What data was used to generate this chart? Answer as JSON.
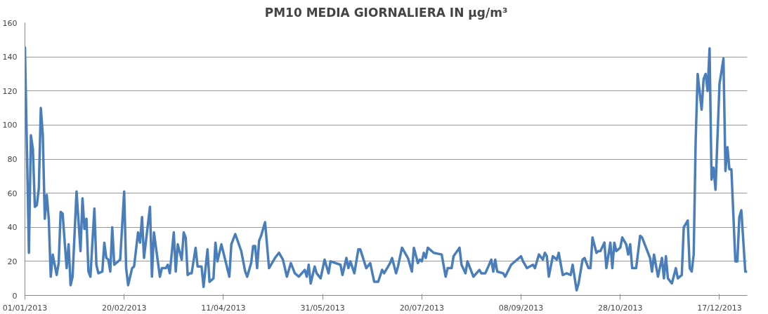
{
  "chart_data": {
    "type": "line",
    "title": "PM10 MEDIA GIORNALIERA IN µg/m³",
    "x": [
      "2013-01-01",
      "2013-01-03",
      "2013-01-04",
      "2013-01-05",
      "2013-01-06",
      "2013-01-07",
      "2013-01-08",
      "2013-01-09",
      "2013-01-10",
      "2013-01-11",
      "2013-01-12",
      "2013-01-13",
      "2013-01-14",
      "2013-01-15",
      "2013-01-17",
      "2013-01-18",
      "2013-01-19",
      "2013-01-20",
      "2013-01-22",
      "2013-01-23",
      "2013-01-24",
      "2013-01-25",
      "2013-01-27",
      "2013-01-29",
      "2013-01-30",
      "2013-01-31",
      "2013-02-01",
      "2013-02-02",
      "2013-02-03",
      "2013-02-05",
      "2013-02-06",
      "2013-02-07",
      "2013-02-09",
      "2013-02-10",
      "2013-02-11",
      "2013-02-12",
      "2013-02-13",
      "2013-02-14",
      "2013-02-15",
      "2013-02-18",
      "2013-02-20",
      "2013-02-21",
      "2013-02-22",
      "2013-02-24",
      "2013-02-25",
      "2013-02-27",
      "2013-02-28",
      "2013-03-01",
      "2013-03-02",
      "2013-03-05",
      "2013-03-06",
      "2013-03-07",
      "2013-03-10",
      "2013-03-11",
      "2013-03-13",
      "2013-03-14",
      "2013-03-15",
      "2013-03-17",
      "2013-03-18",
      "2013-03-19",
      "2013-03-21",
      "2013-03-22",
      "2013-03-23",
      "2013-03-24",
      "2013-03-25",
      "2013-03-26",
      "2013-03-28",
      "2013-03-29",
      "2013-03-31",
      "2013-04-01",
      "2013-04-03",
      "2013-04-04",
      "2013-04-06",
      "2013-04-07",
      "2013-04-08",
      "2013-04-10",
      "2013-04-14",
      "2013-04-15",
      "2013-04-17",
      "2013-04-20",
      "2013-04-22",
      "2013-04-23",
      "2013-04-25",
      "2013-04-26",
      "2013-04-27",
      "2013-04-28",
      "2013-04-29",
      "2013-04-30",
      "2013-05-02",
      "2013-05-04",
      "2013-05-07",
      "2013-05-09",
      "2013-05-11",
      "2013-05-13",
      "2013-05-15",
      "2013-05-17",
      "2013-05-19",
      "2013-05-22",
      "2013-05-23",
      "2013-05-24",
      "2013-05-25",
      "2013-05-27",
      "2013-05-28",
      "2013-05-30",
      "2013-06-01",
      "2013-06-03",
      "2013-06-04",
      "2013-06-09",
      "2013-06-10",
      "2013-06-12",
      "2013-06-13",
      "2013-06-14",
      "2013-06-16",
      "2013-06-18",
      "2013-06-19",
      "2013-06-22",
      "2013-06-24",
      "2013-06-26",
      "2013-06-28",
      "2013-06-30",
      "2013-07-01",
      "2013-07-04",
      "2013-07-05",
      "2013-07-07",
      "2013-07-08",
      "2013-07-10",
      "2013-07-13",
      "2013-07-15",
      "2013-07-16",
      "2013-07-18",
      "2013-07-19",
      "2013-07-20",
      "2013-07-21",
      "2013-07-22",
      "2013-07-23",
      "2013-07-26",
      "2013-07-30",
      "2013-08-01",
      "2013-08-02",
      "2013-08-04",
      "2013-08-05",
      "2013-08-08",
      "2013-08-09",
      "2013-08-11",
      "2013-08-12",
      "2013-08-15",
      "2013-08-18",
      "2013-08-19",
      "2013-08-21",
      "2013-08-24",
      "2013-08-25",
      "2013-08-26",
      "2013-08-27",
      "2013-08-30",
      "2013-08-31",
      "2013-09-03",
      "2013-09-08",
      "2013-09-09",
      "2013-09-11",
      "2013-09-14",
      "2013-09-15",
      "2013-09-17",
      "2013-09-19",
      "2013-09-20",
      "2013-09-21",
      "2013-09-22",
      "2013-09-24",
      "2013-09-26",
      "2013-09-27",
      "2013-09-29",
      "2013-10-01",
      "2013-10-03",
      "2013-10-04",
      "2013-10-06",
      "2013-10-07",
      "2013-10-09",
      "2013-10-10",
      "2013-10-12",
      "2013-10-13",
      "2013-10-14",
      "2013-10-16",
      "2013-10-17",
      "2013-10-18",
      "2013-10-20",
      "2013-10-21",
      "2013-10-23",
      "2013-10-24",
      "2013-10-25",
      "2013-10-26",
      "2013-10-28",
      "2013-10-29",
      "2013-10-31",
      "2013-11-01",
      "2013-11-02",
      "2013-11-03",
      "2013-11-05",
      "2013-11-07",
      "2013-11-08",
      "2013-11-12",
      "2013-11-13",
      "2013-11-14",
      "2013-11-16",
      "2013-11-18",
      "2013-11-19",
      "2013-11-20",
      "2013-11-21",
      "2013-11-23",
      "2013-11-25",
      "2013-11-26",
      "2013-11-28",
      "2013-11-29",
      "2013-12-01",
      "2013-12-02",
      "2013-12-03",
      "2013-12-04",
      "2013-12-05",
      "2013-12-06",
      "2013-12-08",
      "2013-12-09",
      "2013-12-10",
      "2013-12-11",
      "2013-12-12",
      "2013-12-13",
      "2013-12-14",
      "2013-12-15",
      "2013-12-17",
      "2013-12-19",
      "2013-12-20",
      "2013-12-21",
      "2013-12-22",
      "2013-12-23",
      "2013-12-25",
      "2013-12-26",
      "2013-12-27",
      "2013-12-28",
      "2013-12-30",
      "2013-12-31"
    ],
    "series": [
      {
        "color": "#4a7ebb",
        "values": [
          146,
          25,
          94,
          86,
          52,
          53,
          63,
          110,
          94,
          45,
          59,
          45,
          11,
          24,
          12,
          19,
          49,
          48,
          16,
          30,
          6,
          11,
          61,
          26,
          57,
          39,
          45,
          14,
          11,
          51,
          18,
          13,
          14,
          31,
          22,
          21,
          14,
          40,
          18,
          21,
          61,
          16,
          6,
          16,
          17,
          37,
          31,
          46,
          22,
          52,
          11,
          37,
          11,
          16,
          16,
          18,
          13,
          37,
          14,
          30,
          21,
          37,
          34,
          12,
          13,
          13,
          28,
          17,
          17,
          5,
          27,
          8,
          10,
          31,
          20,
          30,
          11,
          30,
          36,
          26,
          14,
          11,
          19,
          29,
          29,
          16,
          32,
          35,
          43,
          16,
          22,
          25,
          21,
          11,
          19,
          13,
          11,
          15,
          11,
          18,
          7,
          17,
          13,
          10,
          21,
          13,
          20,
          18,
          12,
          22,
          16,
          20,
          13,
          27,
          27,
          16,
          19,
          8,
          8,
          15,
          13,
          19,
          22,
          13,
          17,
          28,
          22,
          14,
          28,
          19,
          21,
          20,
          25,
          22,
          28,
          25,
          24,
          11,
          16,
          16,
          23,
          28,
          18,
          13,
          20,
          11,
          15,
          13,
          13,
          21,
          14,
          21,
          14,
          13,
          11,
          18,
          23,
          20,
          16,
          18,
          16,
          24,
          21,
          25,
          23,
          11,
          23,
          21,
          25,
          12,
          13,
          12,
          18,
          3,
          7,
          21,
          22,
          16,
          16,
          34,
          25,
          26,
          26,
          31,
          16,
          31,
          16,
          31,
          26,
          28,
          34,
          30,
          24,
          30,
          16,
          16,
          35,
          34,
          22,
          14,
          24,
          11,
          22,
          10,
          23,
          10,
          7,
          16,
          10,
          12,
          40,
          44,
          16,
          14,
          24,
          91,
          130,
          109,
          127,
          130,
          120,
          145,
          68,
          75,
          62,
          124,
          139,
          73,
          87,
          74,
          74,
          20,
          20,
          46,
          50,
          14,
          14
        ]
      }
    ],
    "xlim": [
      "2013-01-01",
      "2013-12-31"
    ],
    "xticks": [
      {
        "value": "2013-01-01",
        "label": "01/01/2013"
      },
      {
        "value": "2013-02-20",
        "label": "20/02/2013"
      },
      {
        "value": "2013-04-11",
        "label": "11/04/2013"
      },
      {
        "value": "2013-05-31",
        "label": "31/05/2013"
      },
      {
        "value": "2013-07-20",
        "label": "20/07/2013"
      },
      {
        "value": "2013-09-08",
        "label": "08/09/2013"
      },
      {
        "value": "2013-10-28",
        "label": "28/10/2013"
      },
      {
        "value": "2013-12-17",
        "label": "17/12/2013"
      }
    ],
    "ylim": [
      0,
      160
    ],
    "yticks": [
      0,
      20,
      40,
      60,
      80,
      100,
      120,
      140,
      160
    ],
    "grid": "y",
    "marker": "none",
    "line_style": "solid"
  }
}
